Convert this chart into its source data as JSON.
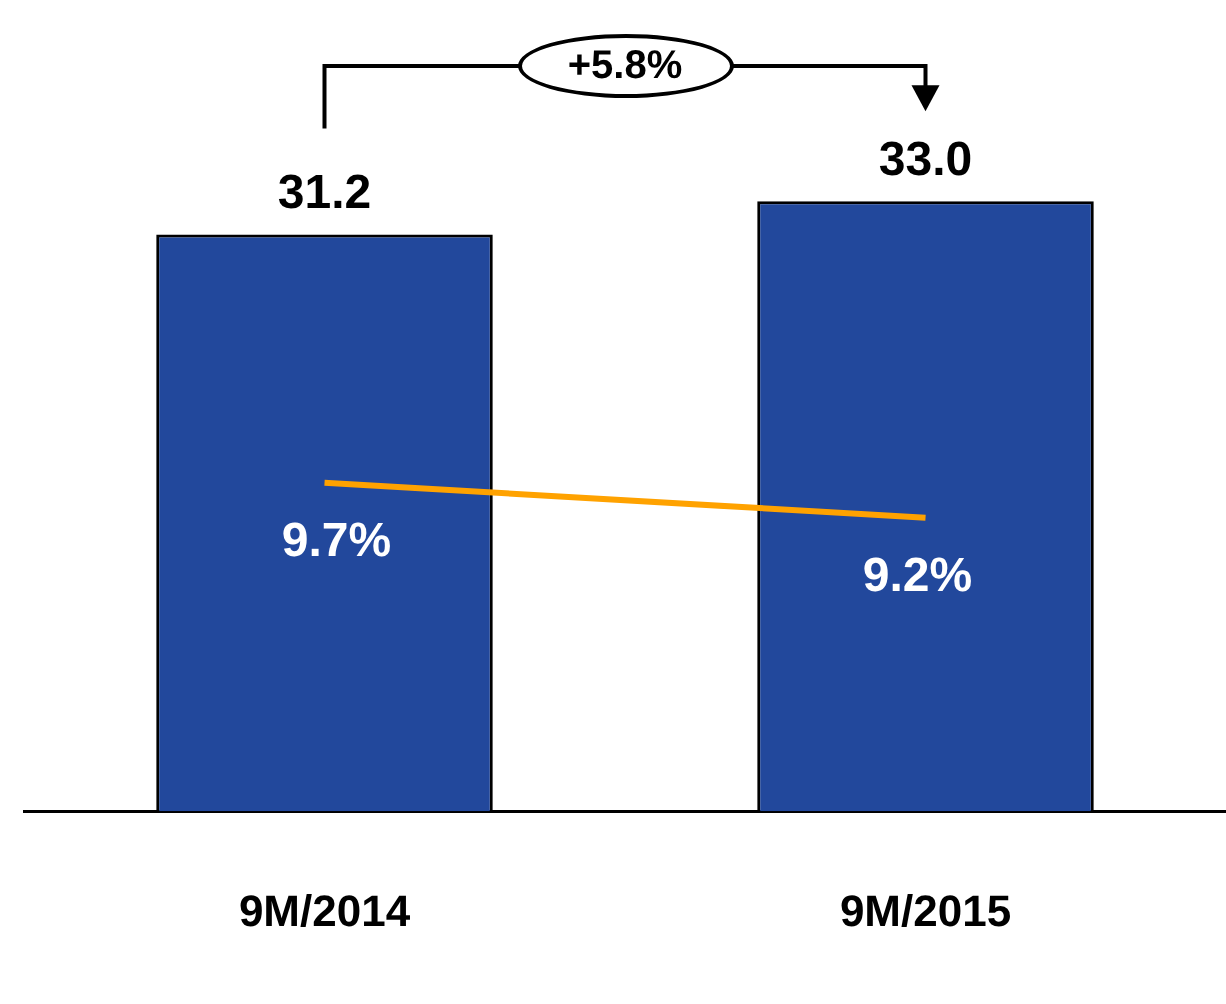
{
  "chart_data": {
    "type": "bar",
    "categories": [
      "9M/2014",
      "9M/2015"
    ],
    "series": [
      {
        "type": "bar",
        "color": "#22489c",
        "values": [
          31.2,
          33.0
        ],
        "value_labels": [
          "31.2",
          "33.0"
        ]
      },
      {
        "type": "line",
        "axis": "y2",
        "color": "#ffa200",
        "values": [
          9.7,
          9.2
        ],
        "value_labels": [
          "9.7%",
          "9.2%"
        ]
      }
    ],
    "annotations": [
      "+5.8%"
    ],
    "tick_labels": "x",
    "grid": false,
    "legend": false,
    "marker": "none"
  }
}
